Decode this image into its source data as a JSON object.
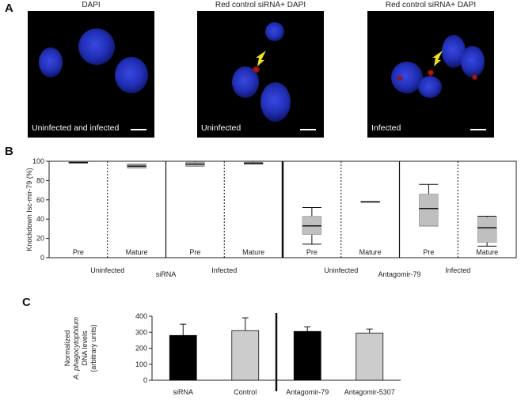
{
  "panelA": {
    "label": "A",
    "images": [
      {
        "title": "DAPI",
        "caption": "Uninfected and infected"
      },
      {
        "title": "Red control siRNA+ DAPI",
        "caption": "Uninfected"
      },
      {
        "title": "Red control siRNA+ DAPI",
        "caption": "Infected"
      }
    ]
  },
  "panelB": {
    "label": "B"
  },
  "panelC": {
    "label": "C"
  },
  "chart_data": [
    {
      "type": "box",
      "ylabel": "Knockdown Isc-mir-79 (%)",
      "ylim": [
        0,
        100
      ],
      "yticks": [
        0,
        20,
        40,
        60,
        80,
        100
      ],
      "categories": [
        "Pre",
        "Mature",
        "Pre",
        "Mature",
        "Pre",
        "Mature",
        "Pre",
        "Mature"
      ],
      "group_labels": [
        "Uninfected",
        "Infected",
        "Uninfected",
        "Infected"
      ],
      "treatment_labels": [
        "siRNA",
        "Antagomir-79"
      ],
      "series": [
        {
          "median": 99,
          "q1": 98,
          "q3": 100,
          "whisker_low": 98,
          "whisker_high": 100
        },
        {
          "median": 95,
          "q1": 93,
          "q3": 97,
          "whisker_low": 93,
          "whisker_high": 97
        },
        {
          "median": 97,
          "q1": 95,
          "q3": 99,
          "whisker_low": 95,
          "whisker_high": 100
        },
        {
          "median": 98,
          "q1": 97,
          "q3": 99,
          "whisker_low": 97,
          "whisker_high": 100
        },
        {
          "median": 33,
          "q1": 24,
          "q3": 43,
          "whisker_low": 14,
          "whisker_high": 52
        },
        {
          "median": 58,
          "q1": 58,
          "q3": 58,
          "whisker_low": 58,
          "whisker_high": 58
        },
        {
          "median": 51,
          "q1": 33,
          "q3": 66,
          "whisker_low": 33,
          "whisker_high": 76
        },
        {
          "median": 31,
          "q1": 16,
          "q3": 42,
          "whisker_low": 12,
          "whisker_high": 43
        }
      ]
    },
    {
      "type": "bar",
      "ylabel_lines": [
        "Normalized",
        "A. phagocytophilum",
        "DNA levels",
        "(arbitrary units)"
      ],
      "ylim": [
        0,
        400
      ],
      "yticks": [
        0,
        100,
        200,
        300,
        400
      ],
      "categories": [
        "siRNA",
        "Control",
        "Antagomir-79",
        "Antagomir-5307"
      ],
      "values": [
        280,
        310,
        305,
        295
      ],
      "errors": [
        70,
        80,
        28,
        25
      ],
      "colors": [
        "#000000",
        "#cccccc",
        "#000000",
        "#cccccc"
      ]
    }
  ]
}
